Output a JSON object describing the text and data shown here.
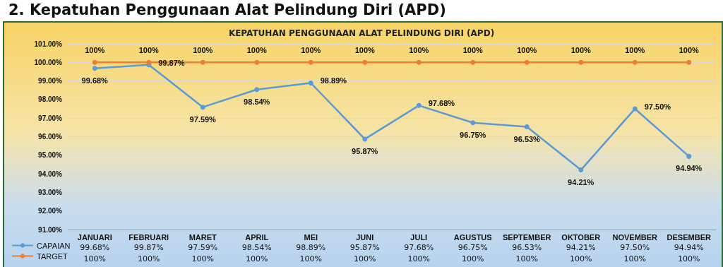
{
  "chart_data": {
    "type": "line",
    "title": "2. Kepatuhan Penggunaan Alat Pelindung Diri (APD)",
    "subtitle": "KEPATUHAN PENGGUNAAN ALAT PELINDUNG DIRI (APD)",
    "categories": [
      "JANUARI",
      "FEBRUARI",
      "MARET",
      "APRIL",
      "MEI",
      "JUNI",
      "JULI",
      "AGUSTUS",
      "SEPTEMBER",
      "OKTOBER",
      "NOVEMBER",
      "DESEMBER"
    ],
    "series": [
      {
        "name": "CAPAIAN",
        "color": "#5b9bd5",
        "values": [
          99.68,
          99.87,
          97.59,
          98.54,
          98.89,
          95.87,
          97.68,
          96.75,
          96.53,
          94.21,
          97.5,
          94.94
        ],
        "value_labels": [
          "99.68%",
          "99.87%",
          "97.59%",
          "98.54%",
          "98.89%",
          "95.87%",
          "97.68%",
          "96.75%",
          "96.53%",
          "94.21%",
          "97.50%",
          "94.94%"
        ]
      },
      {
        "name": "TARGET",
        "color": "#ed7d31",
        "values": [
          100,
          100,
          100,
          100,
          100,
          100,
          100,
          100,
          100,
          100,
          100,
          100
        ],
        "value_labels": [
          "100%",
          "100%",
          "100%",
          "100%",
          "100%",
          "100%",
          "100%",
          "100%",
          "100%",
          "100%",
          "100%",
          "100%"
        ]
      }
    ],
    "ylim": [
      91,
      101
    ],
    "yticks": [
      {
        "value": 91,
        "label": "91.00%"
      },
      {
        "value": 92,
        "label": "92.00%"
      },
      {
        "value": 93,
        "label": "93.00%"
      },
      {
        "value": 94,
        "label": "94.00%"
      },
      {
        "value": 95,
        "label": "95.00%"
      },
      {
        "value": 96,
        "label": "96.00%"
      },
      {
        "value": 97,
        "label": "97.00%"
      },
      {
        "value": 98,
        "label": "98.00%"
      },
      {
        "value": 99,
        "label": "99.00%"
      },
      {
        "value": 100,
        "label": "100.00%"
      },
      {
        "value": 101,
        "label": "101.00%"
      }
    ],
    "grid": "y",
    "legend": "bottom left",
    "marker": "circle",
    "line_style": "solid"
  }
}
